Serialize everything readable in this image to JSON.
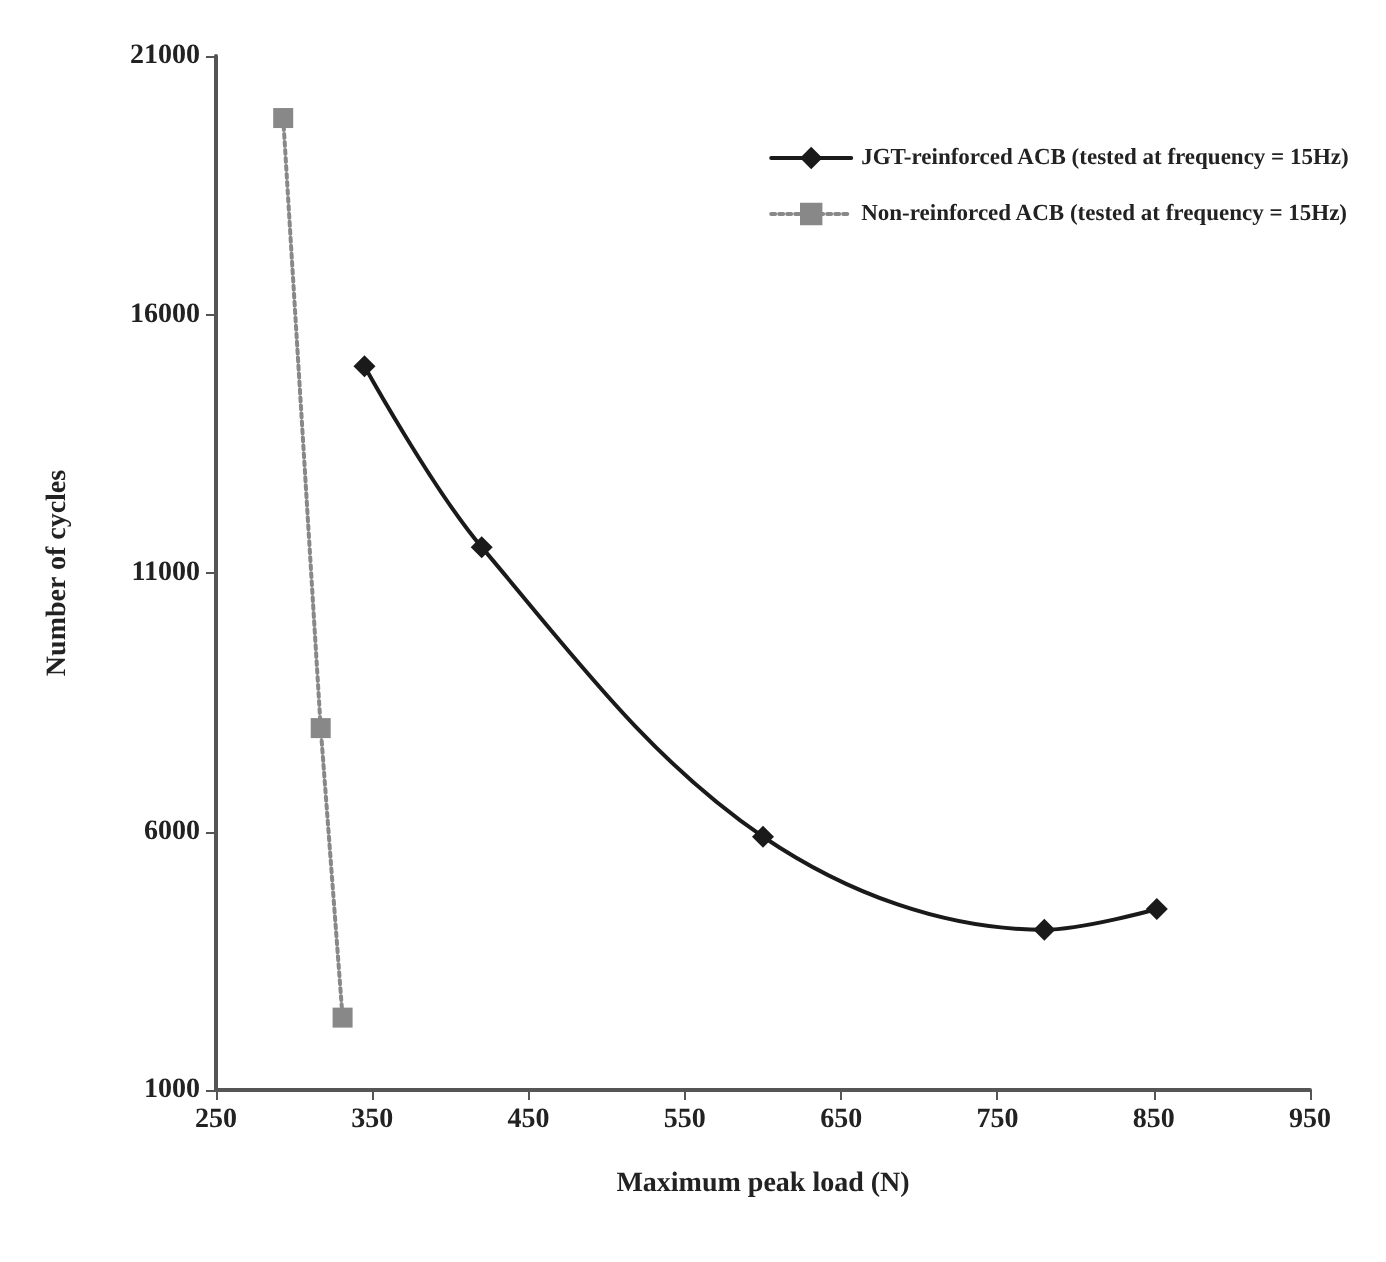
{
  "chart_data": {
    "type": "line",
    "xlabel": "Maximum peak load (N)",
    "ylabel": "Number of cycles",
    "xlim": [
      250,
      950
    ],
    "xticks": [
      250,
      350,
      450,
      550,
      650,
      750,
      850,
      950
    ],
    "ylim": [
      1000,
      21000
    ],
    "yticks": [
      1000,
      6000,
      11000,
      16000,
      21000
    ],
    "grid": false,
    "legend": "top right",
    "series": [
      {
        "name": "JGT-reinforced ACB (tested at frequency = 15Hz)",
        "color": "#1a1a1a",
        "marker": "diamond",
        "line_style": "solid",
        "x": [
          345,
          420,
          600,
          780,
          852
        ],
        "values": [
          15000,
          11500,
          5900,
          4100,
          4500
        ]
      },
      {
        "name": "Non-reinforced ACB (tested at frequency = 15Hz)",
        "color": "#888888",
        "marker": "square",
        "line_style": "dotted",
        "x": [
          293,
          317,
          331
        ],
        "values": [
          19800,
          8000,
          2400
        ]
      }
    ]
  }
}
